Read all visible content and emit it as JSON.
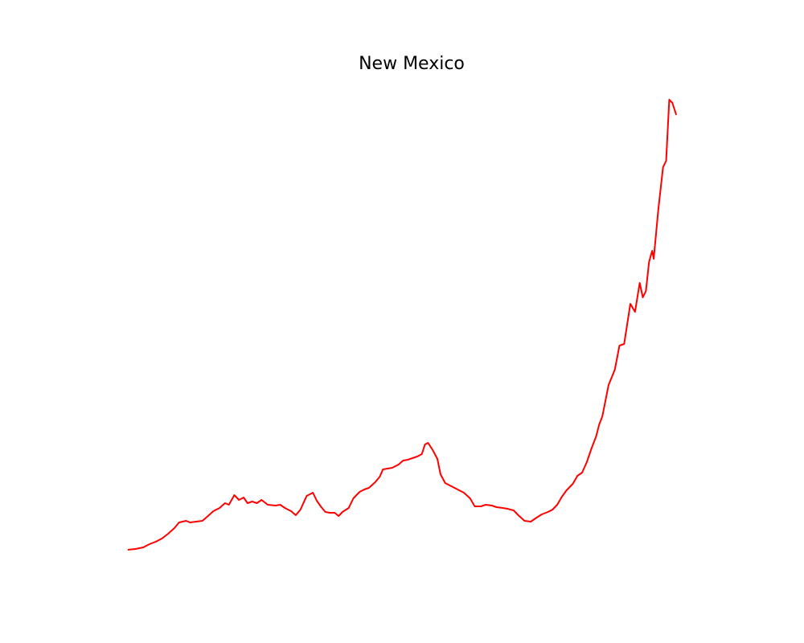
{
  "chart_data": {
    "type": "line",
    "title": "New Mexico",
    "x": [
      0,
      10,
      20,
      28,
      36,
      44,
      52,
      60,
      66,
      75,
      80,
      88,
      96,
      102,
      110,
      118,
      125,
      130,
      137,
      143,
      149,
      154,
      160,
      166,
      172,
      180,
      190,
      196,
      202,
      210,
      216,
      222,
      230,
      238,
      243,
      248,
      254,
      260,
      266,
      271,
      276,
      284,
      290,
      298,
      304,
      310,
      318,
      324,
      328,
      334,
      340,
      348,
      354,
      360,
      366,
      372,
      378,
      382,
      386,
      392,
      398,
      402,
      408,
      416,
      424,
      432,
      440,
      446,
      454,
      460,
      468,
      474,
      482,
      488,
      496,
      502,
      510,
      518,
      524,
      532,
      540,
      546,
      552,
      558,
      564,
      572,
      578,
      584,
      590,
      596,
      602,
      606,
      610,
      618,
      626,
      632,
      638,
      646,
      652,
      658,
      662,
      666,
      670,
      674,
      676,
      682,
      688,
      692,
      696,
      700,
      705
    ],
    "series": [
      {
        "name": null,
        "color": "#ff0000",
        "values": [
          28,
          29,
          31,
          35,
          38,
          42,
          48,
          55,
          62,
          64,
          62,
          63,
          64,
          69,
          76,
          80,
          86,
          84,
          96,
          90,
          93,
          86,
          88,
          86,
          90,
          84,
          83,
          84,
          80,
          76,
          71,
          78,
          95,
          99,
          89,
          82,
          75,
          74,
          74,
          70,
          75,
          80,
          92,
          100,
          103,
          105,
          112,
          119,
          128,
          129,
          130,
          134,
          139,
          140,
          142,
          144,
          147,
          159,
          161,
          152,
          141,
          122,
          111,
          107,
          103,
          99,
          92,
          82,
          82,
          84,
          83,
          81,
          80,
          79,
          77,
          71,
          64,
          63,
          67,
          72,
          75,
          78,
          84,
          94,
          102,
          110,
          120,
          124,
          137,
          154,
          169,
          184,
          194,
          233,
          252,
          282,
          284,
          334,
          324,
          360,
          342,
          350,
          386,
          400,
          390,
          452,
          504,
          512,
          588,
          584,
          569
        ]
      }
    ],
    "xlim": [
      -35,
      740
    ],
    "ylim": [
      0,
      616
    ]
  }
}
